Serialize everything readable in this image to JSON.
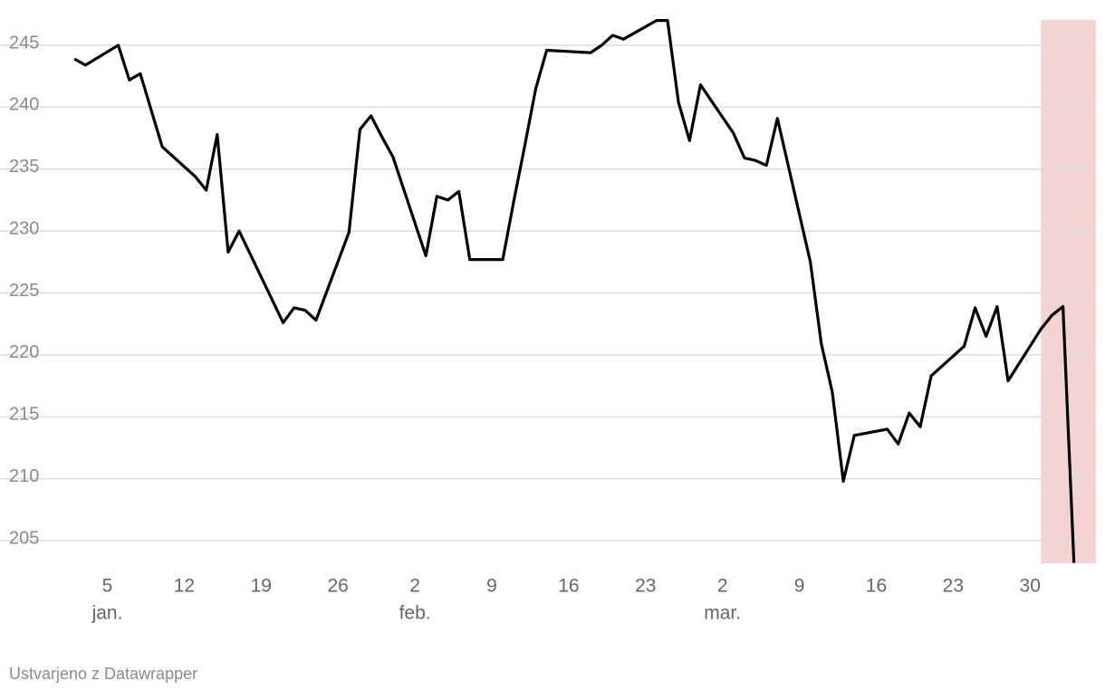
{
  "chart_data": {
    "type": "line",
    "color": "#000000",
    "grid": true,
    "credit": "Ustvarjeno z Datawrapper",
    "highlight": [
      "03-31",
      "04-05"
    ],
    "highlight_color": "#f3d2d2",
    "x": [
      "01-02",
      "01-03",
      "01-06",
      "01-07",
      "01-08",
      "01-10",
      "01-13",
      "01-14",
      "01-15",
      "01-16",
      "01-17",
      "01-21",
      "01-22",
      "01-23",
      "01-24",
      "01-27",
      "01-28",
      "01-29",
      "01-30",
      "01-31",
      "02-03",
      "02-04",
      "02-05",
      "02-06",
      "02-07",
      "02-10",
      "02-11",
      "02-12",
      "02-13",
      "02-14",
      "02-18",
      "02-19",
      "02-20",
      "02-21",
      "02-24",
      "02-25",
      "02-26",
      "02-27",
      "02-28",
      "03-03",
      "03-04",
      "03-05",
      "03-06",
      "03-07",
      "03-10",
      "03-11",
      "03-12",
      "03-13",
      "03-14",
      "03-17",
      "03-18",
      "03-19",
      "03-20",
      "03-21",
      "03-24",
      "03-25",
      "03-26",
      "03-27",
      "03-28",
      "03-31",
      "04-01",
      "04-02",
      "04-03"
    ],
    "values": [
      243.9,
      243.4,
      245.0,
      242.2,
      242.7,
      236.8,
      234.4,
      233.3,
      237.8,
      228.3,
      230.0,
      222.6,
      223.8,
      223.6,
      222.8,
      229.9,
      238.2,
      239.3,
      237.6,
      236.0,
      228.0,
      232.8,
      232.5,
      233.2,
      227.7,
      227.7,
      232.4,
      236.9,
      241.5,
      244.6,
      244.4,
      245.0,
      245.8,
      245.5,
      247.0,
      247.0,
      240.4,
      237.3,
      241.8,
      237.9,
      235.9,
      235.7,
      235.3,
      239.1,
      227.5,
      220.9,
      217.0,
      209.8,
      213.5,
      214.0,
      212.8,
      215.3,
      214.2,
      218.3,
      220.7,
      223.8,
      221.5,
      223.9,
      217.9,
      222.1,
      223.2,
      223.9,
      203.2
    ],
    "xlim": [
      "01-01",
      "04-05"
    ],
    "ylim": [
      203,
      247.5
    ],
    "yticks": [
      205,
      210,
      215,
      220,
      225,
      230,
      235,
      240,
      245
    ],
    "xticks": [
      {
        "value": "01-05",
        "label": "5"
      },
      {
        "value": "01-12",
        "label": "12"
      },
      {
        "value": "01-19",
        "label": "19"
      },
      {
        "value": "01-26",
        "label": "26"
      },
      {
        "value": "02-02",
        "label": "2"
      },
      {
        "value": "02-09",
        "label": "9"
      },
      {
        "value": "02-16",
        "label": "16"
      },
      {
        "value": "02-23",
        "label": "23"
      },
      {
        "value": "03-02",
        "label": "2"
      },
      {
        "value": "03-09",
        "label": "9"
      },
      {
        "value": "03-16",
        "label": "16"
      },
      {
        "value": "03-23",
        "label": "23"
      },
      {
        "value": "03-30",
        "label": "30"
      }
    ],
    "month_ticks": [
      {
        "value": "01-05",
        "label": "jan."
      },
      {
        "value": "02-02",
        "label": "feb."
      },
      {
        "value": "03-02",
        "label": "mar."
      }
    ]
  }
}
